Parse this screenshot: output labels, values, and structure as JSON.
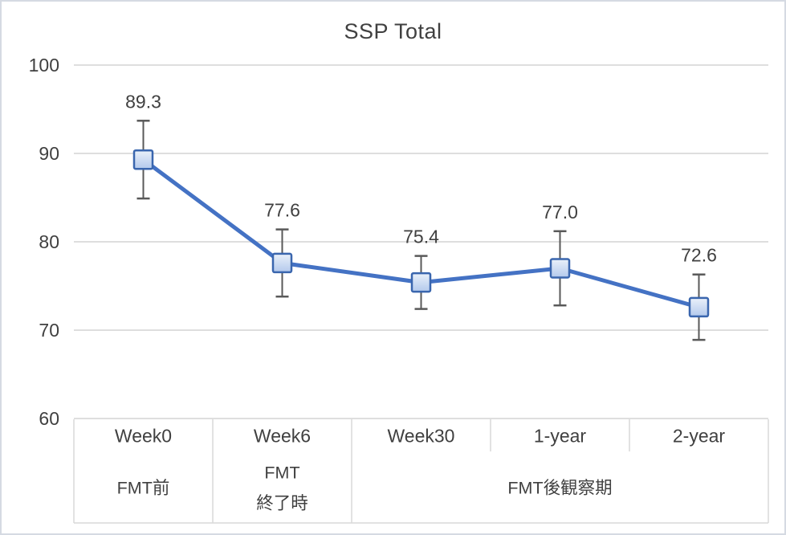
{
  "chart_data": {
    "type": "line",
    "title": "SSP Total",
    "categories": [
      "Week0",
      "Week6",
      "Week30",
      "1-year",
      "2-year"
    ],
    "series": [
      {
        "values": [
          89.3,
          77.6,
          75.4,
          77.0,
          72.6
        ],
        "error_bars": [
          4.4,
          3.8,
          3.0,
          4.2,
          3.7
        ]
      }
    ],
    "data_labels": [
      "89.3",
      "77.6",
      "75.4",
      "77.0",
      "72.6"
    ],
    "y_ticks": [
      100,
      90,
      80,
      70,
      60
    ],
    "ylim": [
      60,
      100
    ],
    "x_groups": [
      {
        "lines": [
          "FMT前"
        ],
        "span": [
          0,
          1
        ]
      },
      {
        "lines": [
          "FMT",
          "終了時"
        ],
        "span": [
          1,
          2
        ]
      },
      {
        "lines": [
          "FMT後観察期"
        ],
        "span": [
          2,
          5
        ]
      }
    ],
    "grid": true,
    "legend": "none",
    "marker_shape": "square",
    "colors": {
      "line": "#4472C4",
      "marker_border": "#3A66AE",
      "marker_fill_top": "#EAF1FA",
      "marker_fill_bottom": "#B3C9EC",
      "error_bar": "#595959",
      "gridline": "#D9D9D9",
      "table_border": "#D9D9D9",
      "text": "#404040",
      "frame_border": "#D5DAE2",
      "background": "#FFFFFF"
    }
  }
}
